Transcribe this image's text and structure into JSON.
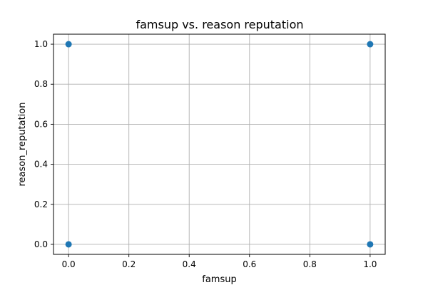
{
  "chart_data": {
    "type": "scatter",
    "title": "famsup vs. reason reputation",
    "xlabel": "famsup",
    "ylabel": "reason_reputation",
    "xlim": [
      -0.05,
      1.05
    ],
    "ylim": [
      -0.05,
      1.05
    ],
    "x_ticks": [
      0.0,
      0.2,
      0.4,
      0.6,
      0.8,
      1.0
    ],
    "x_tick_labels": [
      "0.0",
      "0.2",
      "0.4",
      "0.6",
      "0.8",
      "1.0"
    ],
    "y_ticks": [
      0.0,
      0.2,
      0.4,
      0.6,
      0.8,
      1.0
    ],
    "y_tick_labels": [
      "0.0",
      "0.2",
      "0.4",
      "0.6",
      "0.8",
      "1.0"
    ],
    "grid": true,
    "points": [
      {
        "x": 0,
        "y": 1
      },
      {
        "x": 1,
        "y": 1
      },
      {
        "x": 0,
        "y": 0
      },
      {
        "x": 1,
        "y": 0
      }
    ],
    "marker_color": "#1f77b4"
  }
}
